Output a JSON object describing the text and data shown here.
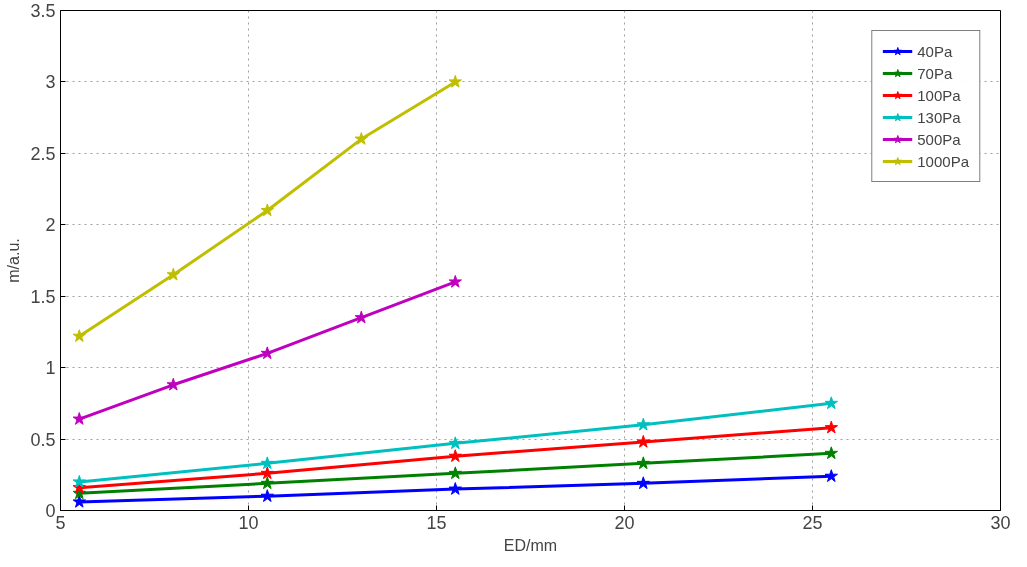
{
  "chart_data": {
    "type": "line",
    "xlabel": "ED/mm",
    "ylabel": "m/a.u.",
    "xlim": [
      5,
      30
    ],
    "xticks": [
      5,
      10,
      15,
      20,
      25,
      30
    ],
    "ylim": [
      0,
      3.5
    ],
    "yticks": [
      0,
      0.5,
      1,
      1.5,
      2,
      2.5,
      3,
      3.5
    ],
    "grid": true,
    "legend": "top right",
    "marker": "star",
    "line_style": "solid",
    "series": [
      {
        "name": "40Pa",
        "color": "#0000ff",
        "x": [
          5.5,
          10.5,
          15.5,
          20.5,
          25.5
        ],
        "values": [
          0.06,
          0.1,
          0.15,
          0.19,
          0.24
        ]
      },
      {
        "name": "70Pa",
        "color": "#008000",
        "x": [
          5.5,
          10.5,
          15.5,
          20.5,
          25.5
        ],
        "values": [
          0.12,
          0.19,
          0.26,
          0.33,
          0.4
        ]
      },
      {
        "name": "100Pa",
        "color": "#ff0000",
        "x": [
          5.5,
          10.5,
          15.5,
          20.5,
          25.5
        ],
        "values": [
          0.16,
          0.26,
          0.38,
          0.48,
          0.58
        ]
      },
      {
        "name": "130Pa",
        "color": "#00bfbf",
        "x": [
          5.5,
          10.5,
          15.5,
          20.5,
          25.5
        ],
        "values": [
          0.2,
          0.33,
          0.47,
          0.6,
          0.75
        ]
      },
      {
        "name": "500Pa",
        "color": "#bf00bf",
        "x": [
          5.5,
          8,
          10.5,
          13,
          15.5
        ],
        "values": [
          0.64,
          0.88,
          1.1,
          1.35,
          1.6
        ]
      },
      {
        "name": "1000Pa",
        "color": "#bfbf00",
        "x": [
          5.5,
          8,
          10.5,
          13,
          15.5
        ],
        "values": [
          1.22,
          1.65,
          2.1,
          2.6,
          3.0
        ]
      }
    ]
  }
}
